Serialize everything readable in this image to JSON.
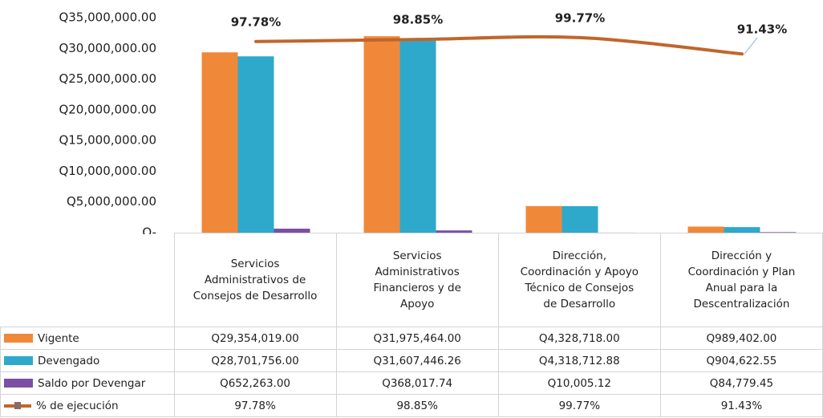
{
  "chart_data": {
    "type": "bar",
    "categories": [
      "Servicios Administrativos de Consejos de Desarrollo",
      "Servicios Administrativos Financieros y de Apoyo",
      "Dirección, Coordinación y Apoyo Técnico de Consejos de Desarrollo",
      "Dirección y Coordinación y Plan Anual para la Descentralización"
    ],
    "series": [
      {
        "name": "Vigente",
        "type": "bar",
        "color": "#f0883a",
        "values": [
          29354019.0,
          31975464.0,
          4328718.0,
          989402.0
        ],
        "value_labels": [
          "Q29,354,019.00",
          "Q31,975,464.00",
          "Q4,328,718.00",
          "Q989,402.00"
        ]
      },
      {
        "name": "Devengado",
        "type": "bar",
        "color": "#2ea9cc",
        "values": [
          28701756.0,
          31607446.26,
          4318712.88,
          904622.55
        ],
        "value_labels": [
          "Q28,701,756.00",
          "Q31,607,446.26",
          "Q4,318,712.88",
          "Q904,622.55"
        ]
      },
      {
        "name": "Saldo por Devengar",
        "type": "bar",
        "color": "#7b4fa3",
        "values": [
          652263.0,
          368017.74,
          10005.12,
          84779.45
        ],
        "value_labels": [
          "Q652,263.00",
          "Q368,017.74",
          "Q10,005.12",
          "Q84,779.45"
        ]
      },
      {
        "name": "% de ejecución",
        "type": "line",
        "axis": "y2",
        "color": "#c0662c",
        "values": [
          97.78,
          98.85,
          99.77,
          91.43
        ],
        "value_labels": [
          "97.78%",
          "98.85%",
          "99.77%",
          "91.43%"
        ]
      }
    ],
    "ylim": [
      0,
      35000000
    ],
    "yticks": [
      {
        "value": 0,
        "label": "Q-"
      },
      {
        "value": 5000000,
        "label": "Q5,000,000.00"
      },
      {
        "value": 10000000,
        "label": "Q10,000,000.00"
      },
      {
        "value": 15000000,
        "label": "Q15,000,000.00"
      },
      {
        "value": 20000000,
        "label": "Q20,000,000.00"
      },
      {
        "value": 25000000,
        "label": "Q25,000,000.00"
      },
      {
        "value": 30000000,
        "label": "Q30,000,000.00"
      },
      {
        "value": 35000000,
        "label": "Q35,000,000.00"
      }
    ],
    "y2lim": [
      0,
      110
    ],
    "grid": false
  }
}
